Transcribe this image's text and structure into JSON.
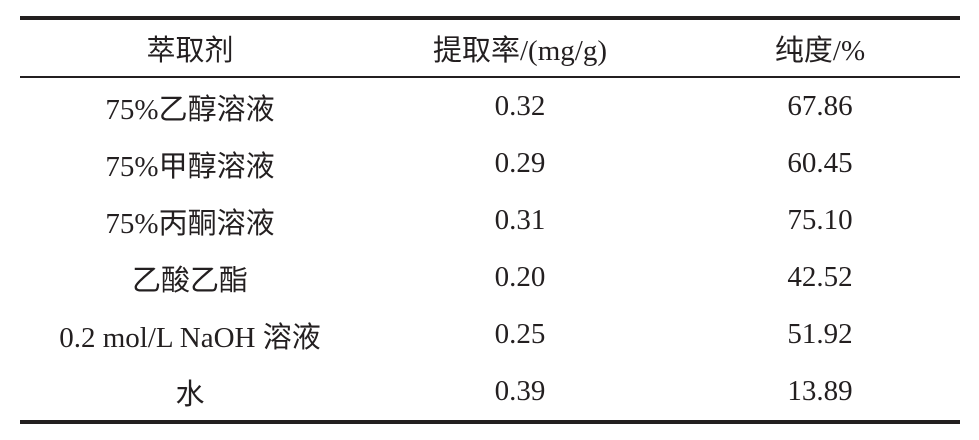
{
  "table": {
    "headers": [
      "萃取剂",
      "提取率/(mg/g)",
      "纯度/%"
    ],
    "rows": [
      [
        "75%乙醇溶液",
        "0.32",
        "67.86"
      ],
      [
        "75%甲醇溶液",
        "0.29",
        "60.45"
      ],
      [
        "75%丙酮溶液",
        "0.31",
        "75.10"
      ],
      [
        "乙酸乙酯",
        "0.20",
        "42.52"
      ],
      [
        "0.2 mol/L NaOH 溶液",
        "0.25",
        "51.92"
      ],
      [
        "水",
        "0.39",
        "13.89"
      ]
    ]
  }
}
